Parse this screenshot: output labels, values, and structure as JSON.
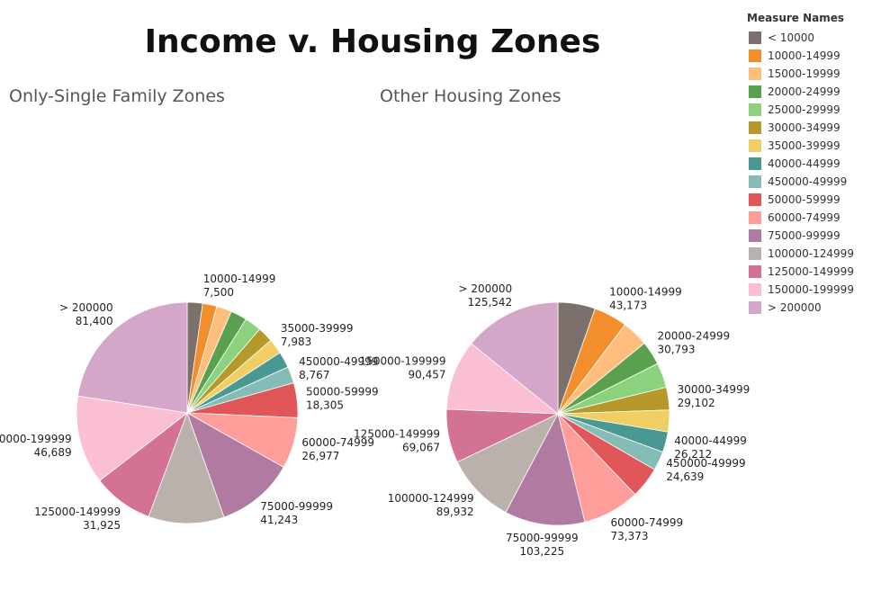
{
  "chart_data": {
    "type": "pie",
    "title": "Income v. Housing Zones",
    "legend_title": "Measure Names",
    "legend_position": "right",
    "categories": [
      "< 10000",
      "10000-14999",
      "15000-19999",
      "20000-24999",
      "25000-29999",
      "30000-34999",
      "35000-39999",
      "40000-44999",
      "450000-49999",
      "50000-59999",
      "60000-74999",
      "75000-99999",
      "100000-124999",
      "125000-149999",
      "150000-199999",
      "> 200000"
    ],
    "legend_labels": [
      "< 10000",
      "10000-14999",
      "15000-19999",
      "20000-24999",
      "25000-29999",
      "30000-34999",
      "35000-39999",
      "40000-44999",
      "450000-49999",
      "50000-59999",
      "60000-74999",
      "75000-99999",
      "100000-124999",
      "125000-149999",
      "150000-199999",
      "> 200000"
    ],
    "colors": [
      "#7b706b",
      "#f28e2c",
      "#ffbe7d",
      "#59a14f",
      "#8cd17d",
      "#b6992d",
      "#f1ce63",
      "#499894",
      "#86bcb6",
      "#e15759",
      "#ff9d9a",
      "#b07aa1",
      "#bab0ac",
      "#d37295",
      "#fabfd2",
      "#d4a6c8"
    ],
    "series": [
      {
        "name": "Only-Single Family Zones",
        "values": [
          8100,
          7500,
          8000,
          8600,
          8800,
          8200,
          7983,
          8500,
          8767,
          18305,
          26977,
          41243,
          40000,
          31925,
          46689,
          81400
        ],
        "labeled": [
          1,
          6,
          8,
          9,
          10,
          11,
          13,
          14,
          15
        ]
      },
      {
        "name": "Other Housing Zones",
        "values": [
          48000,
          43173,
          34000,
          30793,
          32000,
          29102,
          28000,
          26212,
          24639,
          40000,
          73373,
          103225,
          89932,
          69067,
          90457,
          125542
        ],
        "labeled": [
          1,
          3,
          5,
          7,
          8,
          10,
          11,
          12,
          13,
          14,
          15
        ]
      }
    ]
  }
}
